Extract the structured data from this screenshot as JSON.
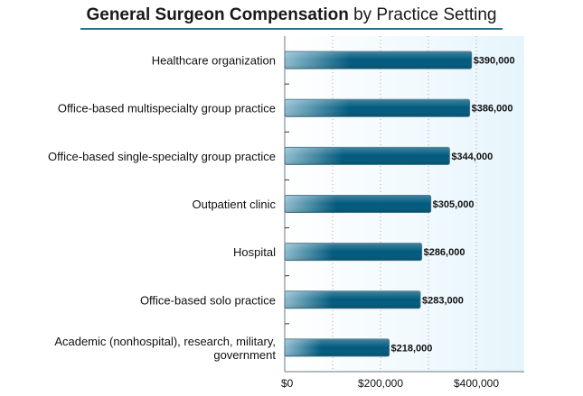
{
  "chart_data": {
    "type": "bar",
    "orientation": "horizontal",
    "title_bold": "General Surgeon Compensation",
    "title_rest": " by Practice Setting",
    "xlabel": "",
    "ylabel": "",
    "xlim": [
      0,
      500000
    ],
    "grid": true,
    "categories": [
      [
        "Healthcare organization"
      ],
      [
        "Office-based multispecialty group practice"
      ],
      [
        "Office-based single-specialty group practice"
      ],
      [
        "Outpatient clinic"
      ],
      [
        "Hospital"
      ],
      [
        "Office-based solo practice"
      ],
      [
        "Academic (nonhospital), research, military,",
        "government"
      ]
    ],
    "values": [
      390000,
      386000,
      344000,
      305000,
      286000,
      283000,
      218000
    ],
    "value_labels": [
      "$390,000",
      "$386,000",
      "$344,000",
      "$305,000",
      "$286,000",
      "$283,000",
      "$218,000"
    ],
    "x_ticks": [
      0,
      200000,
      400000
    ],
    "x_tick_labels": [
      "$0",
      "$200,000",
      "$400,000"
    ],
    "colors": {
      "bar_dark": "#005a7d",
      "bar_light": "#8fbccf",
      "bar_border": "#3d6f85",
      "plot_bg_start": "#ffffff",
      "plot_bg_end": "#e6f5fc",
      "grid": "#9aaab3",
      "axis": "#6c7a82"
    }
  }
}
